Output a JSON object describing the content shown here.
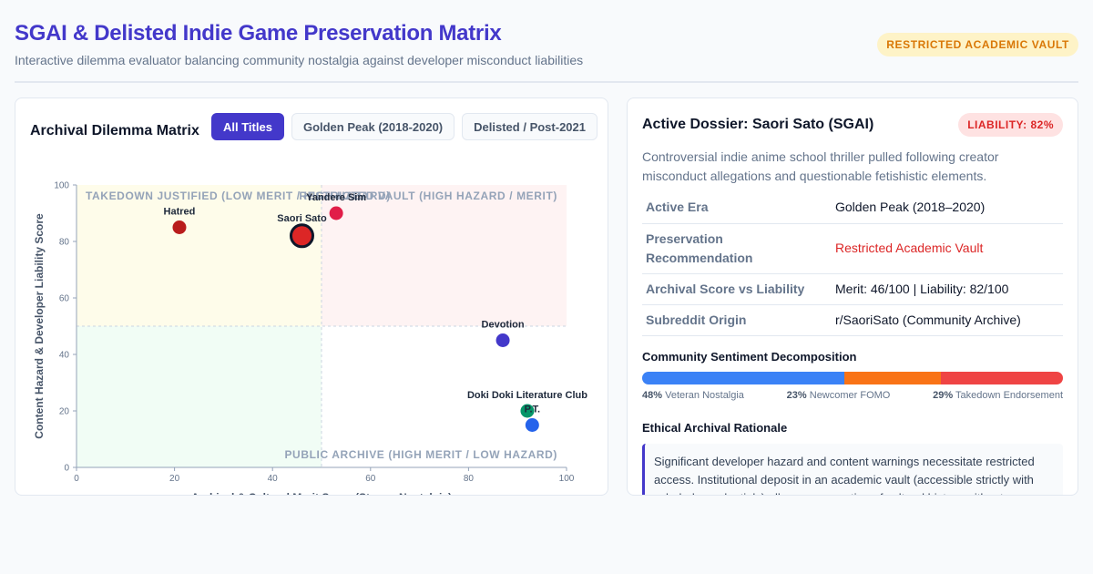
{
  "header": {
    "title": "SGAI & Delisted Indie Game Preservation Matrix",
    "subtitle": "Interactive dilemma evaluator balancing community nostalgia against developer misconduct liabilities",
    "badge": "RESTRICTED ACADEMIC VAULT",
    "badge_color": "#d97706"
  },
  "matrix": {
    "title": "Archival Dilemma Matrix",
    "tabs": [
      {
        "label": "All Titles",
        "active": true
      },
      {
        "label": "Golden Peak (2018-2020)",
        "active": false
      },
      {
        "label": "Delisted / Post-2021",
        "active": false
      }
    ]
  },
  "chart_data": {
    "type": "scatter",
    "xlabel": "Archival & Cultural Merit Score (Stream Nostalgia)",
    "ylabel": "Content Hazard & Developer Liability Score",
    "xlim": [
      0,
      100
    ],
    "ylim": [
      0,
      100
    ],
    "xticks": [
      "0",
      "20",
      "40",
      "60",
      "80",
      "100"
    ],
    "yticks": [
      "0",
      "20",
      "40",
      "60",
      "80",
      "100"
    ],
    "quadrants": [
      {
        "label": "TAKEDOWN JUSTIFIED (LOW MERIT / HIGH HAZARD)",
        "color": "#fefce8",
        "x": [
          0,
          50
        ],
        "y": [
          50,
          100
        ],
        "label_pos": "top-left"
      },
      {
        "label": "RESTRICTED VAULT (HIGH HAZARD / MERIT)",
        "color": "#fef2f2",
        "x": [
          50,
          100
        ],
        "y": [
          50,
          100
        ],
        "label_pos": "top-right"
      },
      {
        "label": "",
        "color": "#f0fdf4",
        "x": [
          0,
          50
        ],
        "y": [
          0,
          50
        ],
        "label_pos": "bottom-left"
      },
      {
        "label": "PUBLIC ARCHIVE (HIGH MERIT / LOW HAZARD)",
        "color": "#ffffff",
        "x": [
          50,
          100
        ],
        "y": [
          0,
          50
        ],
        "label_pos": "bottom-right"
      }
    ],
    "points": [
      {
        "label": "Hatred",
        "x": 21,
        "y": 85,
        "color": "#b91c1c",
        "selected": false
      },
      {
        "label": "Saori Sato",
        "x": 46,
        "y": 82,
        "color": "#dc2626",
        "selected": true
      },
      {
        "label": "Yandere Sim",
        "x": 53,
        "y": 90,
        "color": "#e11d48",
        "selected": false
      },
      {
        "label": "Devotion",
        "x": 87,
        "y": 45,
        "color": "#4338ca",
        "selected": false
      },
      {
        "label": "Doki Doki Literature Club",
        "x": 92,
        "y": 20,
        "color": "#059669",
        "selected": false
      },
      {
        "label": "P.T.",
        "x": 93,
        "y": 15,
        "color": "#2563eb",
        "selected": false
      }
    ]
  },
  "dossier": {
    "title": "Active Dossier: Saori Sato (SGAI)",
    "liability": "LIABILITY: 82%",
    "description": "Controversial indie anime school thriller pulled following creator misconduct allegations and questionable fetishistic elements.",
    "rows": [
      {
        "key": "Active Era",
        "value": "Golden Peak (2018–2020)"
      },
      {
        "key": "Preservation Recommendation",
        "value": "Restricted Academic Vault"
      },
      {
        "key": "Archival Score vs Liability",
        "value": "Merit: 46/100 | Liability: 82/100"
      },
      {
        "key": "Subreddit Origin",
        "value": "r/SaoriSato (Community Archive)"
      }
    ],
    "sentiment_title": "Community Sentiment Decomposition",
    "sentiment": [
      {
        "pct": "48%",
        "value": 48,
        "label": "Veteran Nostalgia",
        "color": "#3b82f6"
      },
      {
        "pct": "23%",
        "value": 23,
        "label": "Newcomer FOMO",
        "color": "#f97316"
      },
      {
        "pct": "29%",
        "value": 29,
        "label": "Takedown Endorsement",
        "color": "#ef4444"
      }
    ],
    "rationale_title": "Ethical Archival Rationale",
    "rationale": "Significant developer hazard and content warnings necessitate restricted access. Institutional deposit in an academic vault (accessible strictly with scholarly credentials) allows preservation of cultural history without"
  }
}
